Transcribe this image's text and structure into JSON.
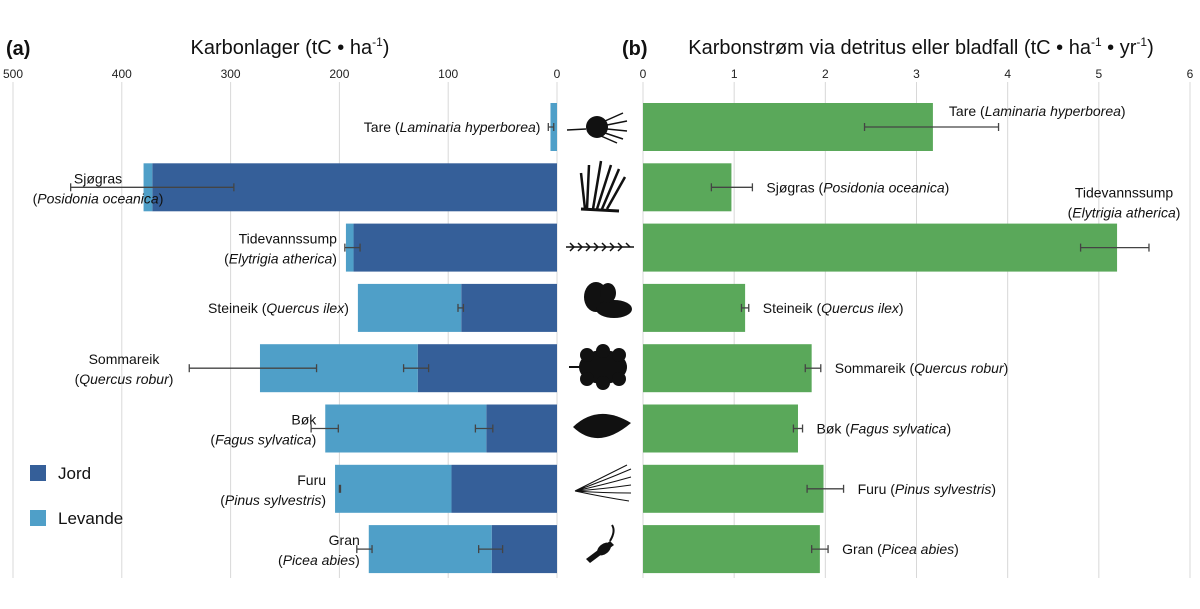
{
  "chart_data": [
    {
      "panel_label": "(a)",
      "type": "bar",
      "orientation": "horizontal",
      "stacked": true,
      "x_reversed": true,
      "title_main": "Karbonlager (tC • ha",
      "title_sup": "-1",
      "title_end": ")",
      "xlim": [
        0,
        500
      ],
      "ticks": [
        500,
        400,
        300,
        200,
        100,
        0
      ],
      "grid": true,
      "legend_position": "bottom-left",
      "legend": [
        {
          "name": "Jord",
          "color": "#355f99"
        },
        {
          "name": "Levande",
          "color": "#4f9fc8"
        }
      ],
      "categories": [
        {
          "line1": "Tare (",
          "italic1": "Laminaria hyperborea",
          "end1": ")",
          "line2": "",
          "italic2": "",
          "end2": ""
        },
        {
          "line1": "Sjøgras",
          "italic1": "",
          "end1": "",
          "line2": "(",
          "italic2": "Posidonia oceanica",
          "end2": ")"
        },
        {
          "line1": "Tidevannssump",
          "italic1": "",
          "end1": "",
          "line2": "(",
          "italic2": "Elytrigia atherica",
          "end2": ")"
        },
        {
          "line1": "Steineik (",
          "italic1": "Quercus ilex",
          "end1": ")",
          "line2": "",
          "italic2": "",
          "end2": ""
        },
        {
          "line1": "Sommareik",
          "italic1": "",
          "end1": "",
          "line2": "(",
          "italic2": "Quercus robur",
          "end2": ")"
        },
        {
          "line1": "Bøk",
          "italic1": "",
          "end1": "",
          "line2": "(",
          "italic2": "Fagus sylvatica",
          "end2": ")"
        },
        {
          "line1": "Furu",
          "italic1": "",
          "end1": "",
          "line2": "(",
          "italic2": "Pinus sylvestris",
          "end2": ")"
        },
        {
          "line1": "Gran",
          "italic1": "",
          "end1": "",
          "line2": "(",
          "italic2": "Picea abies",
          "end2": ")"
        }
      ],
      "series": [
        {
          "name": "Jord",
          "values": [
            0,
            372,
            187,
            88,
            128,
            65,
            97,
            60
          ]
        },
        {
          "name": "Levande",
          "values": [
            6,
            8,
            7,
            95,
            145,
            148,
            107,
            113
          ]
        }
      ],
      "error_bars": {
        "jord": [
          null,
          [
            297,
            447
          ],
          [
            181,
            195
          ],
          [
            86,
            91
          ],
          [
            118,
            141
          ],
          [
            59,
            75
          ],
          null,
          [
            50,
            72
          ]
        ],
        "total": [
          [
            3,
            8
          ],
          null,
          null,
          null,
          [
            221,
            338
          ],
          [
            201,
            226
          ],
          [
            199,
            200
          ],
          [
            170,
            184
          ]
        ]
      }
    },
    {
      "panel_label": "(b)",
      "type": "bar",
      "orientation": "horizontal",
      "title_main": "Karbonstrøm via detritus eller bladfall (tC • ha",
      "title_sup1": "-1",
      "title_mid": " • yr",
      "title_sup2": "-1",
      "title_end": ")",
      "xlim": [
        0,
        6
      ],
      "ticks": [
        0,
        1,
        2,
        3,
        4,
        5,
        6
      ],
      "grid": true,
      "color": "#5aa85a",
      "categories": [
        {
          "line1": "Tare (",
          "italic1": "Laminaria hyperborea",
          "end1": ")",
          "line2": "",
          "italic2": "",
          "end2": ""
        },
        {
          "line1": "Sjøgras (",
          "italic1": "Posidonia oceanica",
          "end1": ")",
          "line2": "",
          "italic2": "",
          "end2": ""
        },
        {
          "line1": "Tidevannssump",
          "italic1": "",
          "end1": "",
          "line2": "(",
          "italic2": "Elytrigia atherica",
          "end2": ")"
        },
        {
          "line1": "Steineik (",
          "italic1": "Quercus ilex",
          "end1": ")",
          "line2": "",
          "italic2": "",
          "end2": ""
        },
        {
          "line1": "Sommareik (",
          "italic1": "Quercus robur",
          "end1": ")",
          "line2": "",
          "italic2": "",
          "end2": ""
        },
        {
          "line1": "Bøk (",
          "italic1": "Fagus sylvatica",
          "end1": ")",
          "line2": "",
          "italic2": "",
          "end2": ""
        },
        {
          "line1": "Furu (",
          "italic1": "Pinus sylvestris",
          "end1": ")",
          "line2": "",
          "italic2": "",
          "end2": ""
        },
        {
          "line1": "Gran (",
          "italic1": "Picea abies",
          "end1": ")",
          "line2": "",
          "italic2": "",
          "end2": ""
        }
      ],
      "values": [
        3.18,
        0.97,
        5.2,
        1.12,
        1.85,
        1.7,
        1.98,
        1.94
      ],
      "errors": [
        [
          2.43,
          3.9
        ],
        [
          0.75,
          1.2
        ],
        [
          4.8,
          5.55
        ],
        [
          1.08,
          1.16
        ],
        [
          1.78,
          1.95
        ],
        [
          1.65,
          1.75
        ],
        [
          1.8,
          2.2
        ],
        [
          1.85,
          2.03
        ]
      ]
    }
  ],
  "icons": [
    "kelp-icon",
    "seagrass-icon",
    "marsh-grass-icon",
    "holm-oak-leaf-icon",
    "oak-leaf-icon",
    "beech-leaf-icon",
    "pine-needle-icon",
    "spruce-cone-icon"
  ]
}
